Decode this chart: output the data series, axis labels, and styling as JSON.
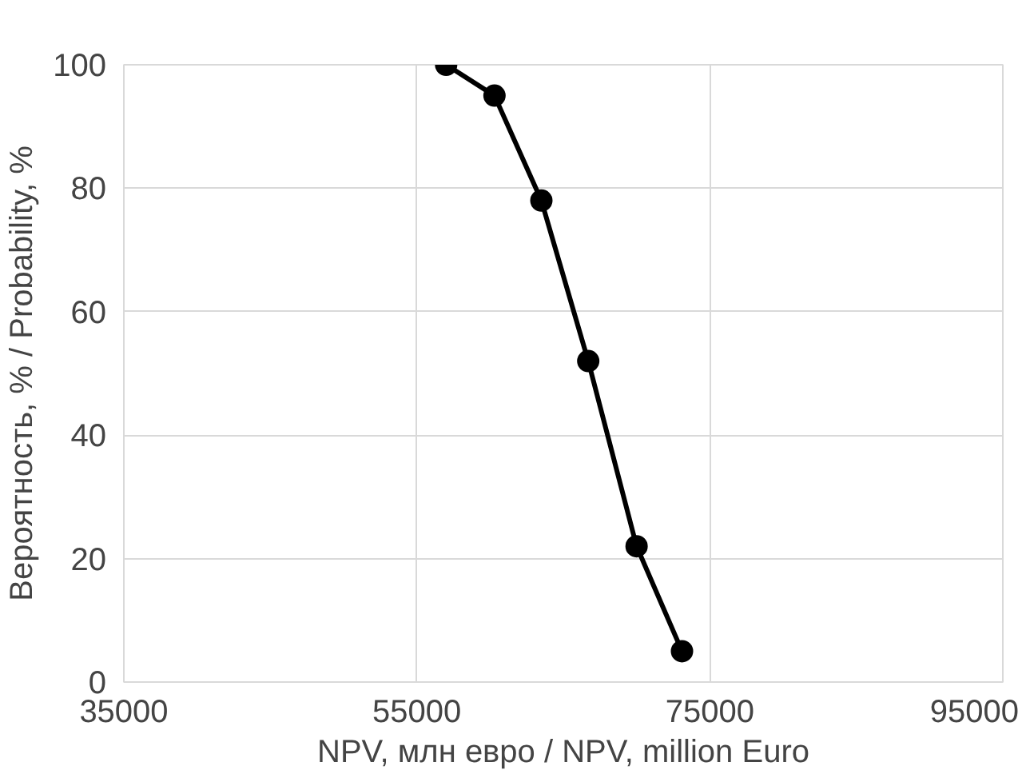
{
  "chart_data": {
    "type": "line",
    "xlabel": "NPV, млн евро / NPV, million Euro",
    "ylabel": "Вероятность, % / Probability, %",
    "x": [
      57000,
      60300,
      63500,
      66700,
      70000,
      73100
    ],
    "series": [
      {
        "color": "#000000",
        "values": [
          100,
          95,
          78,
          52,
          22,
          5
        ]
      }
    ],
    "xlim": [
      35000,
      95000
    ],
    "xticks": [
      35000,
      55000,
      75000,
      95000
    ],
    "ylim": [
      0,
      100
    ],
    "yticks": [
      0,
      20,
      40,
      60,
      80,
      100
    ],
    "grid": true,
    "marker": "circle",
    "line_style": "solid"
  }
}
